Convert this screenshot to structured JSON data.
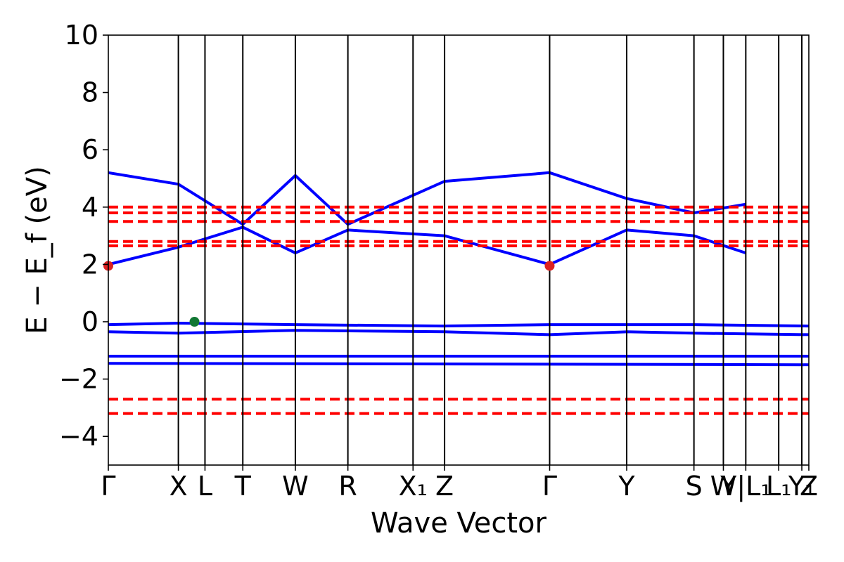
{
  "chart_data": {
    "type": "line",
    "title": "",
    "xlabel": "Wave Vector",
    "ylabel": "E − E_f (eV)",
    "ylim": [
      -5,
      10
    ],
    "y_ticks": [
      -4,
      -2,
      0,
      2,
      4,
      6,
      8,
      10
    ],
    "y_tick_labels": [
      "−4",
      "−2",
      "0",
      "2",
      "4",
      "6",
      "8",
      "10"
    ],
    "kpoint_labels": [
      "Γ",
      "X",
      "L",
      "T",
      "W",
      "R",
      "X₁",
      "Z",
      "Γ",
      "Y",
      "S",
      "W",
      "Y|L₁",
      "L₁",
      "Y₁",
      "Z"
    ],
    "kpoint_positions": [
      0.0,
      1.0,
      1.38,
      1.92,
      2.67,
      3.42,
      4.35,
      4.8,
      6.3,
      7.4,
      8.36,
      8.78,
      9.1,
      9.57,
      9.9,
      10.0
    ],
    "grid": false,
    "series": [
      {
        "style": "solid",
        "color": "#0000ff",
        "anchor_bands": [
          {
            "x": [
              0,
              1.0,
              1.92,
              2.67,
              3.42,
              4.8,
              6.3,
              7.4,
              8.36,
              9.1
            ],
            "y": [
              2.0,
              2.6,
              3.3,
              2.4,
              3.2,
              3.0,
              2.0,
              3.2,
              3.0,
              2.4
            ]
          },
          {
            "x": [
              0,
              1.0,
              1.92,
              2.67,
              3.42,
              4.8,
              6.3,
              7.4,
              8.36,
              9.1
            ],
            "y": [
              5.2,
              4.8,
              3.4,
              5.1,
              3.4,
              4.9,
              5.2,
              4.3,
              3.8,
              4.1
            ]
          },
          {
            "x": [
              0,
              1.0,
              2.67,
              4.8,
              6.3,
              7.4,
              8.36,
              10
            ],
            "y": [
              -0.1,
              -0.05,
              -0.1,
              -0.15,
              -0.1,
              -0.1,
              -0.1,
              -0.15
            ]
          },
          {
            "x": [
              0,
              1.0,
              2.67,
              4.8,
              6.3,
              7.4,
              8.36,
              10
            ],
            "y": [
              -0.35,
              -0.4,
              -0.3,
              -0.35,
              -0.45,
              -0.35,
              -0.4,
              -0.45
            ]
          },
          {
            "x": [
              0,
              10
            ],
            "y": [
              -1.2,
              -1.2
            ]
          },
          {
            "x": [
              0,
              10
            ],
            "y": [
              -1.45,
              -1.5
            ]
          }
        ]
      },
      {
        "style": "dashed",
        "color": "#ff0000",
        "anchor_bands": [
          {
            "x": [
              0,
              10
            ],
            "y": [
              2.65,
              2.65
            ]
          },
          {
            "x": [
              0,
              10
            ],
            "y": [
              2.8,
              2.8
            ]
          },
          {
            "x": [
              0,
              10
            ],
            "y": [
              3.5,
              3.5
            ]
          },
          {
            "x": [
              0,
              10
            ],
            "y": [
              3.8,
              3.8
            ]
          },
          {
            "x": [
              0,
              10
            ],
            "y": [
              4.0,
              4.0
            ]
          },
          {
            "x": [
              0,
              10
            ],
            "y": [
              -2.7,
              -2.7
            ]
          },
          {
            "x": [
              0,
              10
            ],
            "y": [
              -3.2,
              -3.2
            ]
          }
        ]
      }
    ],
    "markers": [
      {
        "x": 0.0,
        "y": 1.95,
        "color": "#dd2222"
      },
      {
        "x": 6.3,
        "y": 1.95,
        "color": "#dd2222"
      },
      {
        "x": 1.23,
        "y": 0.0,
        "color": "#117733"
      }
    ]
  }
}
